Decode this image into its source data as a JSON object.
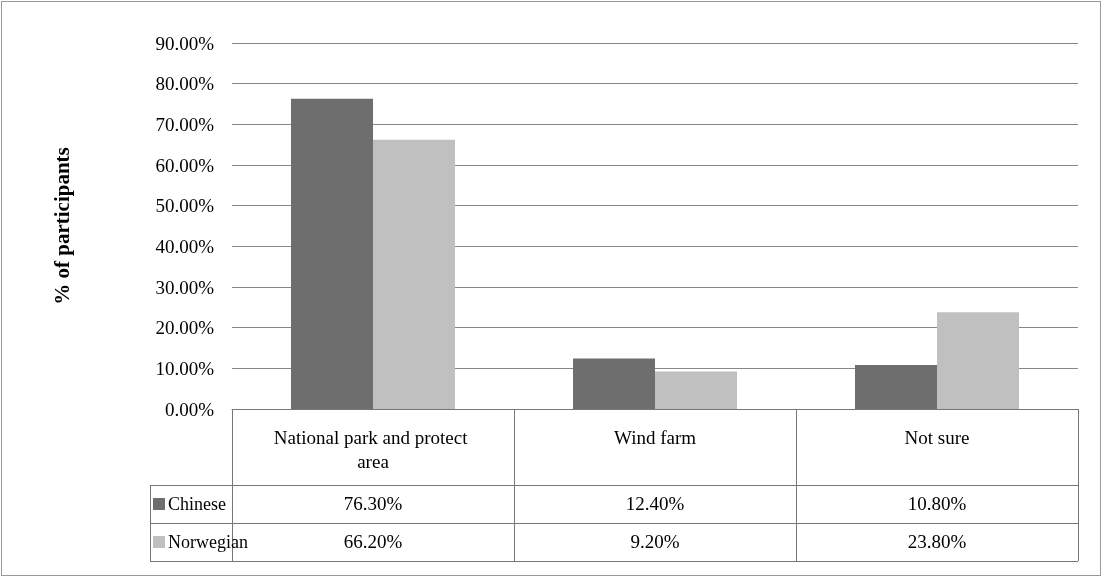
{
  "chart_data": {
    "type": "bar",
    "ylabel": "% of participants",
    "categories": [
      "National park and protect area",
      "Wind farm",
      "Not sure"
    ],
    "series": [
      {
        "name": "Chinese",
        "color": "#6e6e6e",
        "values": [
          76.3,
          12.4,
          10.8
        ],
        "value_labels": [
          "76.30%",
          "12.40%",
          "10.80%"
        ]
      },
      {
        "name": "Norwegian",
        "color": "#c0c0c0",
        "values": [
          66.2,
          9.2,
          23.8
        ],
        "value_labels": [
          "66.20%",
          "9.20%",
          "23.80%"
        ]
      }
    ],
    "ylim": [
      0,
      90
    ],
    "yticks": [
      {
        "value": 0,
        "label": "0.00%"
      },
      {
        "value": 10,
        "label": "10.00%"
      },
      {
        "value": 20,
        "label": "20.00%"
      },
      {
        "value": 30,
        "label": "30.00%"
      },
      {
        "value": 40,
        "label": "40.00%"
      },
      {
        "value": 50,
        "label": "50.00%"
      },
      {
        "value": 60,
        "label": "60.00%"
      },
      {
        "value": 70,
        "label": "70.00%"
      },
      {
        "value": 80,
        "label": "80.00%"
      },
      {
        "value": 90,
        "label": "90.00%"
      }
    ],
    "grid": true,
    "legend": "bottom left"
  }
}
